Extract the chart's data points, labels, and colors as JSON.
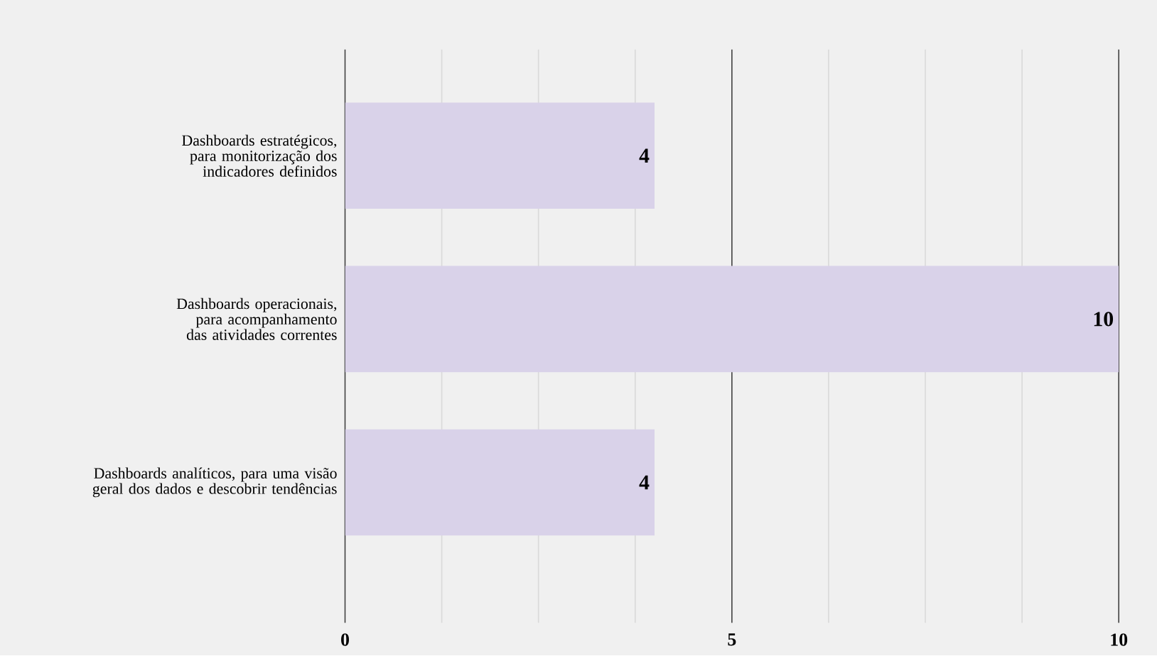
{
  "chart_data": {
    "type": "bar",
    "orientation": "horizontal",
    "categories": [
      "Dashboards estratégicos, para monitorização dos indicadores definidos",
      "Dashboards operacionais, para acompanhamento das atividades correntes",
      "Dashboards analíticos, para uma visão geral dos dados e descobrir tendências"
    ],
    "values": [
      4,
      10,
      4
    ],
    "color": "#d9d2e9",
    "xlim": [
      0,
      10
    ],
    "xticks": [
      0,
      5,
      10
    ],
    "grid": "x",
    "data_labels": true
  }
}
